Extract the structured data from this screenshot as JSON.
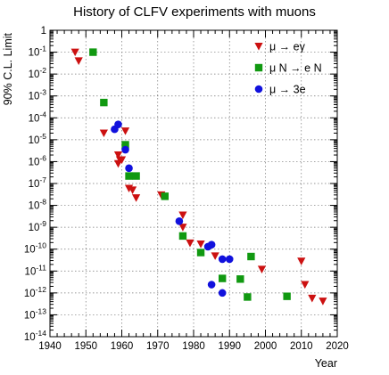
{
  "chart_data": {
    "type": "scatter",
    "title": "History of CLFV experiments with muons",
    "xlabel": "Year",
    "ylabel": "90% C.L. Limit",
    "xlim": [
      1940,
      2020
    ],
    "ylim_exponent": [
      -14,
      0
    ],
    "y_scale": "log",
    "grid": true,
    "legend_position": "top-right",
    "x_ticks": [
      "1940",
      "1950",
      "1960",
      "1970",
      "1980",
      "1990",
      "2000",
      "2010",
      "2020"
    ],
    "y_ticks": [
      {
        "base": "10",
        "exp": "-14"
      },
      {
        "base": "10",
        "exp": "-13"
      },
      {
        "base": "10",
        "exp": "-12"
      },
      {
        "base": "10",
        "exp": "-11"
      },
      {
        "base": "10",
        "exp": "-10"
      },
      {
        "base": "10",
        "exp": "-9"
      },
      {
        "base": "10",
        "exp": "-8"
      },
      {
        "base": "10",
        "exp": "-7"
      },
      {
        "base": "10",
        "exp": "-6"
      },
      {
        "base": "10",
        "exp": "-5"
      },
      {
        "base": "10",
        "exp": "-4"
      },
      {
        "base": "10",
        "exp": "-3"
      },
      {
        "base": "10",
        "exp": "-2"
      },
      {
        "base": "10",
        "exp": "-1"
      },
      {
        "base": "",
        "exp": "1"
      }
    ],
    "series": [
      {
        "name": "μ → eγ",
        "marker": "triangle-down",
        "color": "#cc1111",
        "points": [
          {
            "x": 1947,
            "y": 0.1
          },
          {
            "x": 1948,
            "y": 0.04
          },
          {
            "x": 1955,
            "y": 2e-05
          },
          {
            "x": 1959,
            "y": 2e-06
          },
          {
            "x": 1959,
            "y": 8e-07
          },
          {
            "x": 1959.5,
            "y": 1.2e-06
          },
          {
            "x": 1960,
            "y": 1.2e-06
          },
          {
            "x": 1961,
            "y": 2.5e-05
          },
          {
            "x": 1962,
            "y": 6e-08
          },
          {
            "x": 1963,
            "y": 5e-08
          },
          {
            "x": 1964,
            "y": 2.2e-08
          },
          {
            "x": 1971,
            "y": 3e-08
          },
          {
            "x": 1977,
            "y": 3.6e-09
          },
          {
            "x": 1977,
            "y": 1e-09
          },
          {
            "x": 1979,
            "y": 1.9e-10
          },
          {
            "x": 1982,
            "y": 1.7e-10
          },
          {
            "x": 1986,
            "y": 4.9e-11
          },
          {
            "x": 1999,
            "y": 1.2e-11
          },
          {
            "x": 2010,
            "y": 2.8e-11
          },
          {
            "x": 2011,
            "y": 2.4e-12
          },
          {
            "x": 2013,
            "y": 5.7e-13
          },
          {
            "x": 2016,
            "y": 4.2e-13
          }
        ]
      },
      {
        "name": "μ N → e N",
        "marker": "square",
        "color": "#119911",
        "points": [
          {
            "x": 1952,
            "y": 0.1
          },
          {
            "x": 1955,
            "y": 0.0005
          },
          {
            "x": 1961,
            "y": 5.9e-06
          },
          {
            "x": 1962,
            "y": 2.2e-07
          },
          {
            "x": 1964,
            "y": 2.2e-07
          },
          {
            "x": 1972,
            "y": 2.6e-08
          },
          {
            "x": 1977,
            "y": 4e-10
          },
          {
            "x": 1982,
            "y": 7e-11
          },
          {
            "x": 1988,
            "y": 4.6e-12
          },
          {
            "x": 1993,
            "y": 4.3e-12
          },
          {
            "x": 1995,
            "y": 6.5e-13
          },
          {
            "x": 1996,
            "y": 4.6e-11
          },
          {
            "x": 2006,
            "y": 7e-13
          }
        ]
      },
      {
        "name": "μ → 3e",
        "marker": "circle",
        "color": "#1111dd",
        "points": [
          {
            "x": 1958,
            "y": 3e-05
          },
          {
            "x": 1959,
            "y": 5e-05
          },
          {
            "x": 1961,
            "y": 3.5e-06
          },
          {
            "x": 1962,
            "y": 5e-07
          },
          {
            "x": 1976,
            "y": 1.9e-09
          },
          {
            "x": 1984,
            "y": 1.3e-10
          },
          {
            "x": 1985,
            "y": 1.6e-10
          },
          {
            "x": 1985,
            "y": 2.4e-12
          },
          {
            "x": 1988,
            "y": 3.5e-11
          },
          {
            "x": 1988,
            "y": 1e-12
          },
          {
            "x": 1990,
            "y": 3.5e-11
          }
        ]
      }
    ]
  }
}
